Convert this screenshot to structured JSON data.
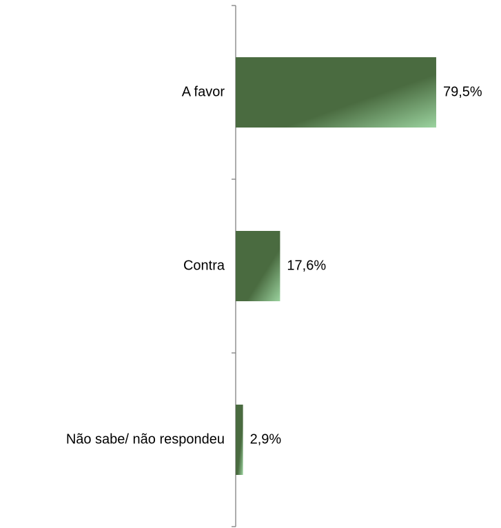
{
  "chart_data": {
    "type": "bar",
    "orientation": "horizontal",
    "categories": [
      "A favor",
      "Contra",
      "Não sabe/ não respondeu"
    ],
    "values": [
      79.5,
      17.6,
      2.9
    ],
    "value_labels": [
      "79,5%",
      "17,6%",
      "2,9%"
    ],
    "unit": "%",
    "title": "",
    "xlabel": "",
    "ylabel": "",
    "xlim": [
      0,
      100
    ],
    "grid": false,
    "legend": "none"
  },
  "colors": {
    "bar_dark": "#4a6b40",
    "bar_light": "#9bd39f",
    "axis": "#808080"
  }
}
